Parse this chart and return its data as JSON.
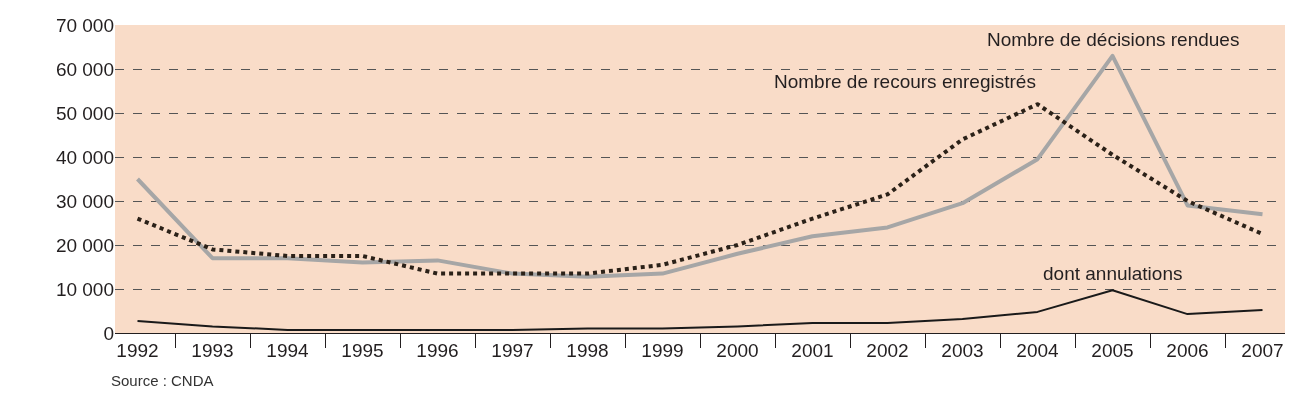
{
  "chart_data": {
    "type": "line",
    "categories": [
      "1992",
      "1993",
      "1994",
      "1995",
      "1996",
      "1997",
      "1998",
      "1999",
      "2000",
      "2001",
      "2002",
      "2003",
      "2004",
      "2005",
      "2006",
      "2007"
    ],
    "series": [
      {
        "name": "Nombre de décisions rendues",
        "color": "#a6a6a6",
        "line_style": "solid",
        "values": [
          35000,
          17000,
          17000,
          16000,
          16500,
          13500,
          12800,
          13500,
          18000,
          22000,
          24000,
          29500,
          39500,
          63000,
          29000,
          27000
        ]
      },
      {
        "name": "Nombre de recours enregistrés",
        "color": "#2b2118",
        "line_style": "dotted",
        "values": [
          26000,
          19000,
          17500,
          17500,
          13500,
          13500,
          13500,
          15500,
          20000,
          26000,
          31500,
          44000,
          52000,
          40500,
          30000,
          22500
        ]
      },
      {
        "name": "dont annulations",
        "color": "#1a1a1a",
        "line_style": "solid",
        "values": [
          2700,
          1500,
          700,
          700,
          700,
          700,
          1000,
          1000,
          1500,
          2300,
          2300,
          3200,
          4800,
          9700,
          4300,
          5200
        ]
      }
    ],
    "ylim": [
      0,
      70000
    ],
    "yticks": [
      0,
      {
        "value": 10000,
        "label": "10 000"
      },
      {
        "value": 20000,
        "label": "20 000"
      },
      {
        "value": 30000,
        "label": "30 000"
      },
      {
        "value": 40000,
        "label": "40 000"
      },
      {
        "value": 50000,
        "label": "50 000"
      },
      {
        "value": 60000,
        "label": "60 000"
      },
      {
        "value": 70000,
        "label": "70 000"
      }
    ],
    "grid": "y",
    "legend": false,
    "marker": "none",
    "annotations": [
      "Source : CNDA"
    ]
  }
}
